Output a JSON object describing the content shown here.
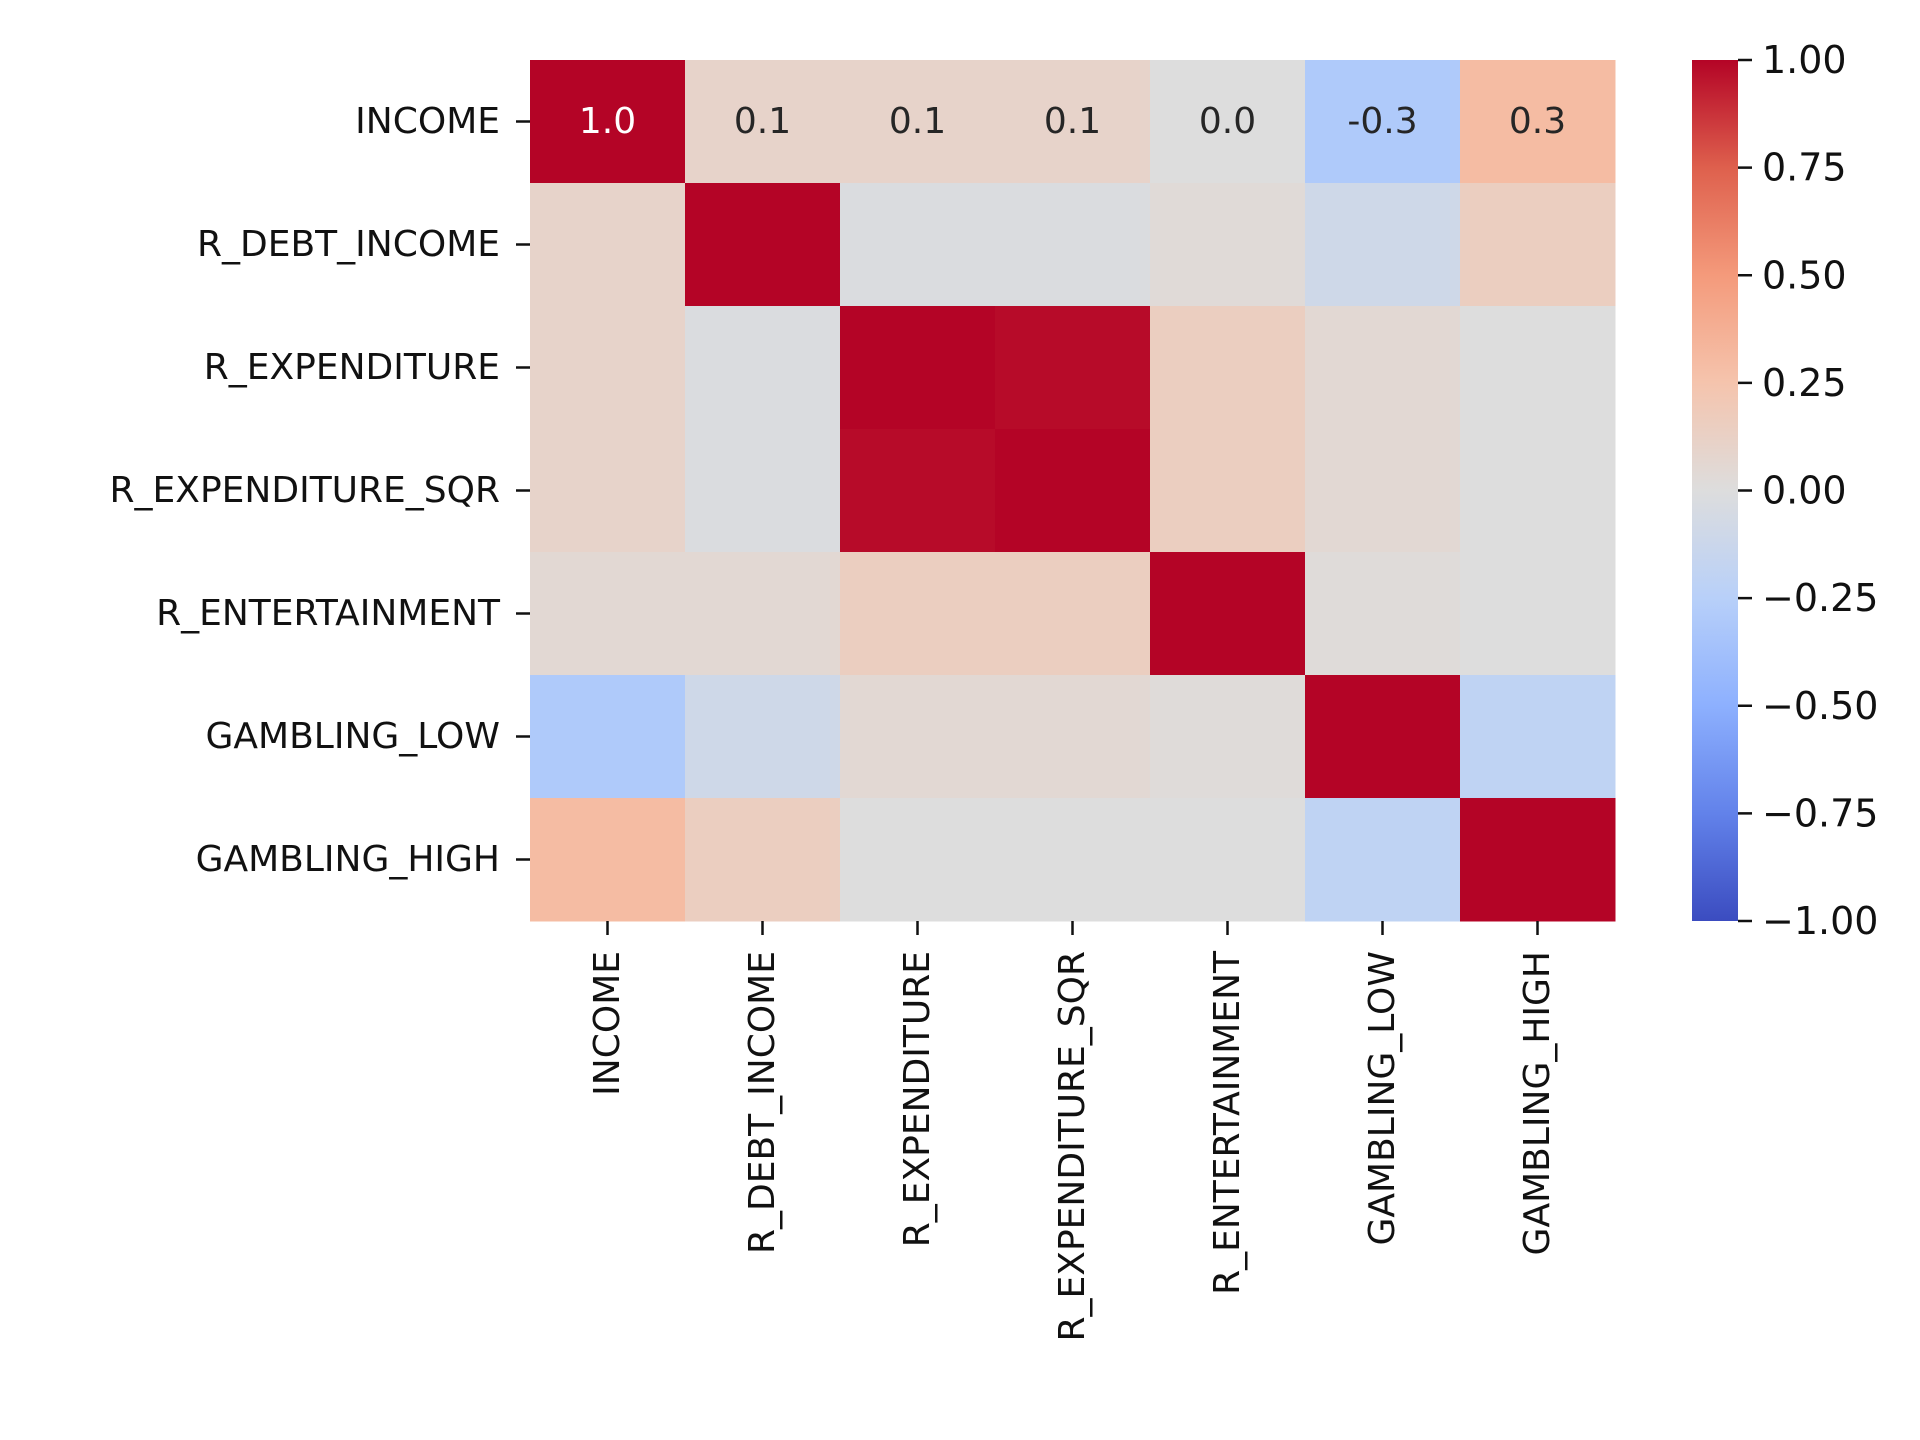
{
  "chart_data": {
    "type": "heatmap",
    "title": "",
    "xlabel": "",
    "ylabel": "",
    "colormap": "coolwarm",
    "vmin": -1.0,
    "vmax": 1.0,
    "rows": [
      "INCOME",
      "R_DEBT_INCOME",
      "R_EXPENDITURE",
      "R_EXPENDITURE_SQR",
      "R_ENTERTAINMENT",
      "GAMBLING_LOW",
      "GAMBLING_HIGH"
    ],
    "columns": [
      "INCOME",
      "R_DEBT_INCOME",
      "R_EXPENDITURE",
      "R_EXPENDITURE_SQR",
      "R_ENTERTAINMENT",
      "GAMBLING_LOW",
      "GAMBLING_HIGH"
    ],
    "values": [
      [
        1.0,
        0.1,
        0.1,
        0.1,
        0.0,
        -0.3,
        0.3
      ],
      [
        0.1,
        1.0,
        -0.02,
        -0.02,
        0.03,
        -0.1,
        0.15
      ],
      [
        0.1,
        -0.02,
        1.0,
        0.98,
        0.15,
        0.05,
        0.0
      ],
      [
        0.1,
        -0.02,
        0.98,
        1.0,
        0.15,
        0.05,
        0.0
      ],
      [
        0.05,
        0.05,
        0.15,
        0.15,
        1.0,
        0.02,
        0.0
      ],
      [
        -0.3,
        -0.1,
        0.05,
        0.05,
        0.02,
        1.0,
        -0.2
      ],
      [
        0.3,
        0.15,
        0.0,
        0.0,
        0.0,
        -0.2,
        1.0
      ]
    ],
    "annotations": [
      [
        "1.0",
        "0.1",
        "0.1",
        "0.1",
        "0.0",
        "-0.3",
        "0.3"
      ],
      [
        "",
        "",
        "",
        "",
        "",
        "",
        ""
      ],
      [
        "",
        "",
        "",
        "",
        "",
        "",
        ""
      ],
      [
        "",
        "",
        "",
        "",
        "",
        "",
        ""
      ],
      [
        "",
        "",
        "",
        "",
        "",
        "",
        ""
      ],
      [
        "",
        "",
        "",
        "",
        "",
        "",
        ""
      ],
      [
        "",
        "",
        "",
        "",
        "",
        "",
        ""
      ]
    ],
    "colorbar": {
      "ticks": [
        1.0,
        0.75,
        0.5,
        0.25,
        0.0,
        -0.25,
        -0.5,
        -0.75,
        -1.0
      ],
      "tick_labels": [
        "1.00",
        "0.75",
        "0.50",
        "0.25",
        "0.00",
        "−0.25",
        "−0.50",
        "−0.75",
        "−1.00"
      ]
    }
  }
}
